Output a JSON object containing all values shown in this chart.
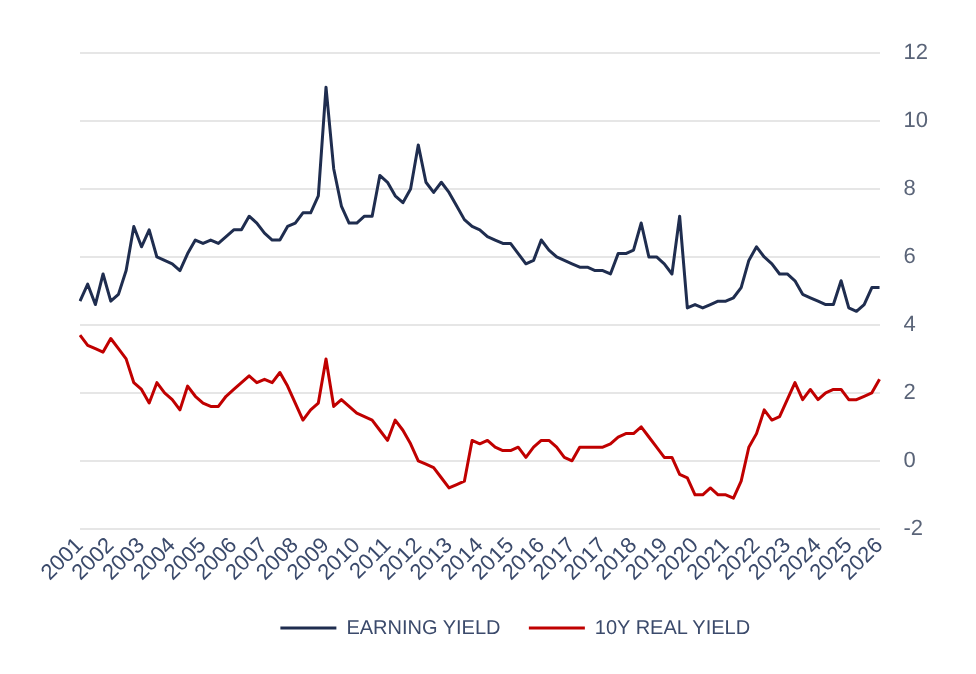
{
  "chart_data": {
    "type": "line",
    "categories": [
      "2001",
      null,
      null,
      null,
      "2002",
      null,
      null,
      null,
      "2003",
      null,
      null,
      null,
      "2004",
      null,
      null,
      null,
      "2005",
      null,
      null,
      null,
      "2006",
      null,
      null,
      null,
      "2007",
      null,
      null,
      null,
      "2008",
      null,
      null,
      null,
      "2009",
      null,
      null,
      null,
      "2010",
      null,
      null,
      null,
      "2011",
      null,
      null,
      null,
      "2012",
      null,
      null,
      null,
      "2013",
      null,
      null,
      null,
      "2014",
      null,
      null,
      null,
      "2015",
      null,
      null,
      null,
      "2016",
      null,
      null,
      null,
      "2017",
      null,
      null,
      null,
      "2017",
      null,
      null,
      null,
      "2018",
      null,
      null,
      null,
      "2019",
      null,
      null,
      null,
      "2020",
      null,
      null,
      null,
      "2021",
      null,
      null,
      null,
      "2022",
      null,
      null,
      null,
      "2023",
      null,
      null,
      null,
      "2024",
      null,
      null,
      null,
      "2025",
      null,
      null,
      null,
      "2026"
    ],
    "series": [
      {
        "name": "EARNING YIELD",
        "color": "#1f2d4f",
        "values": [
          4.7,
          5.2,
          4.6,
          5.5,
          4.7,
          4.9,
          5.6,
          6.9,
          6.3,
          6.8,
          6.0,
          5.9,
          5.8,
          5.6,
          6.1,
          6.5,
          6.4,
          6.5,
          6.4,
          6.6,
          6.8,
          6.8,
          7.2,
          7.0,
          6.7,
          6.5,
          6.5,
          6.9,
          7.0,
          7.3,
          7.3,
          7.8,
          11.0,
          8.6,
          7.5,
          7.0,
          7.0,
          7.2,
          7.2,
          8.4,
          8.2,
          7.8,
          7.6,
          8.0,
          9.3,
          8.2,
          7.9,
          8.2,
          7.9,
          7.5,
          7.1,
          6.9,
          6.8,
          6.6,
          6.5,
          6.4,
          6.4,
          6.1,
          5.8,
          5.9,
          6.5,
          6.2,
          6.0,
          5.9,
          5.8,
          5.7,
          5.7,
          5.6,
          5.6,
          5.5,
          6.1,
          6.1,
          6.2,
          7.0,
          6.0,
          6.0,
          5.8,
          5.5,
          7.2,
          4.5,
          4.6,
          4.5,
          4.6,
          4.7,
          4.7,
          4.8,
          5.1,
          5.9,
          6.3,
          6.0,
          5.8,
          5.5,
          5.5,
          5.3,
          4.9,
          4.8,
          4.7,
          4.6,
          4.6,
          5.3,
          4.5,
          4.4,
          4.6,
          5.1,
          5.1
        ]
      },
      {
        "name": "10Y REAL YIELD",
        "color": "#c00000",
        "values": [
          3.7,
          3.4,
          3.3,
          3.2,
          3.6,
          3.3,
          3.0,
          2.3,
          2.1,
          1.7,
          2.3,
          2.0,
          1.8,
          1.5,
          2.2,
          1.9,
          1.7,
          1.6,
          1.6,
          1.9,
          2.1,
          2.3,
          2.5,
          2.3,
          2.4,
          2.3,
          2.6,
          2.2,
          1.7,
          1.2,
          1.5,
          1.7,
          3.0,
          1.6,
          1.8,
          1.6,
          1.4,
          1.3,
          1.2,
          0.9,
          0.6,
          1.2,
          0.9,
          0.5,
          0.0,
          -0.1,
          -0.2,
          -0.5,
          -0.8,
          -0.7,
          -0.6,
          0.6,
          0.5,
          0.6,
          0.4,
          0.3,
          0.3,
          0.4,
          0.1,
          0.4,
          0.6,
          0.6,
          0.4,
          0.1,
          0.0,
          0.4,
          0.4,
          0.4,
          0.4,
          0.5,
          0.7,
          0.8,
          0.8,
          1.0,
          0.7,
          0.4,
          0.1,
          0.1,
          -0.4,
          -0.5,
          -1.0,
          -1.0,
          -0.8,
          -1.0,
          -1.0,
          -1.1,
          -0.6,
          0.4,
          0.8,
          1.5,
          1.2,
          1.3,
          1.8,
          2.3,
          1.8,
          2.1,
          1.8,
          2.0,
          2.1,
          2.1,
          1.8,
          1.8,
          1.9,
          2.0,
          2.4
        ]
      }
    ],
    "ylim": [
      -2,
      12
    ],
    "yticks": [
      -2,
      0,
      2,
      4,
      6,
      8,
      10,
      12
    ],
    "grid": "y",
    "legend": "bottom",
    "marker": "none",
    "line_style": "solid"
  }
}
